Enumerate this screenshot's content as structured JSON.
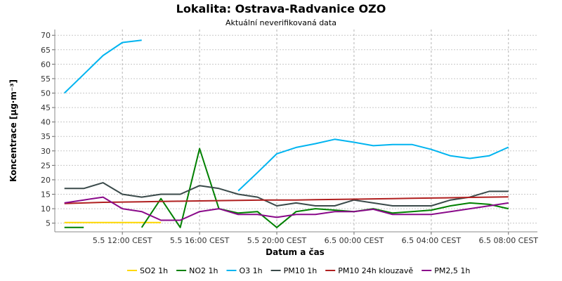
{
  "chart_data": {
    "type": "line",
    "title": "Lokalita: Ostrava-Radvanice OZO",
    "subtitle": "Aktuální neverifikovaná data",
    "xlabel": "Datum a čas",
    "ylabel": "Koncentrace [µg·m⁻³]",
    "ylim": [
      2,
      72
    ],
    "yticks": [
      5,
      10,
      15,
      20,
      25,
      30,
      35,
      40,
      45,
      50,
      55,
      60,
      65,
      70
    ],
    "xlim": [
      8.5,
      33.5
    ],
    "xticks": [
      {
        "x": 12,
        "label": "5.5 12:00 CEST"
      },
      {
        "x": 16,
        "label": "5.5 16:00 CEST"
      },
      {
        "x": 20,
        "label": "5.5 20:00 CEST"
      },
      {
        "x": 24,
        "label": "6.5 00:00 CEST"
      },
      {
        "x": 28,
        "label": "6.5 04:00 CEST"
      },
      {
        "x": 32,
        "label": "6.5 08:00 CEST"
      }
    ],
    "grid": true,
    "legend_position": "bottom",
    "series": [
      {
        "name": "SO2 1h",
        "color": "#ffd800",
        "points": [
          [
            9,
            5.2
          ],
          [
            10,
            5.2
          ],
          [
            11,
            5.2
          ],
          [
            12,
            5.2
          ],
          [
            13,
            5.2
          ],
          [
            14,
            5.2
          ]
        ]
      },
      {
        "name": "NO2 1h",
        "color": "#008000",
        "points": [
          [
            9,
            3.5
          ],
          [
            10,
            3.5
          ],
          null,
          [
            13,
            3.5
          ],
          [
            14,
            13.5
          ],
          [
            15,
            3.5
          ],
          [
            16,
            30.8
          ],
          [
            17,
            10
          ],
          [
            18,
            8.5
          ],
          [
            19,
            9
          ],
          [
            20,
            3.5
          ],
          [
            21,
            9
          ],
          [
            22,
            10
          ],
          [
            23,
            9.5
          ],
          [
            24,
            9
          ],
          [
            25,
            10
          ],
          [
            26,
            8.5
          ],
          [
            27,
            9
          ],
          [
            28,
            9.5
          ],
          [
            29,
            11
          ],
          [
            30,
            12
          ],
          [
            31,
            11.5
          ],
          [
            32,
            10
          ]
        ]
      },
      {
        "name": "O3 1h",
        "color": "#00b4f0",
        "points": [
          [
            9,
            50
          ],
          [
            10,
            56.5
          ],
          [
            11,
            63
          ],
          [
            12,
            67.5
          ],
          [
            13,
            68.3
          ],
          null,
          [
            18,
            16.2
          ],
          [
            19,
            22.5
          ],
          [
            20,
            29
          ],
          [
            21,
            31.2
          ],
          [
            22,
            32.5
          ],
          [
            23,
            34
          ],
          [
            24,
            33
          ],
          [
            25,
            31.8
          ],
          [
            26,
            32.2
          ],
          [
            27,
            32.2
          ],
          [
            28,
            30.5
          ],
          [
            29,
            28.3
          ],
          [
            30,
            27.4
          ],
          [
            31,
            28.3
          ],
          [
            32,
            31.3
          ]
        ]
      },
      {
        "name": "PM10 1h",
        "color": "#3a4a4a",
        "points": [
          [
            9,
            17
          ],
          [
            10,
            17
          ],
          [
            11,
            19
          ],
          [
            12,
            15
          ],
          [
            13,
            14
          ],
          [
            14,
            15
          ],
          [
            15,
            15
          ],
          [
            16,
            18
          ],
          [
            17,
            17
          ],
          [
            18,
            15
          ],
          [
            19,
            14
          ],
          [
            20,
            11
          ],
          [
            21,
            12
          ],
          [
            22,
            11
          ],
          [
            23,
            11
          ],
          [
            24,
            13
          ],
          [
            25,
            12
          ],
          [
            26,
            11
          ],
          [
            27,
            11
          ],
          [
            28,
            11
          ],
          [
            29,
            13
          ],
          [
            30,
            14
          ],
          [
            31,
            16
          ],
          [
            32,
            16
          ]
        ]
      },
      {
        "name": "PM10 24h klouzavě",
        "color": "#b02020",
        "points": [
          [
            9,
            11.8
          ],
          [
            10,
            12
          ],
          [
            11,
            12.2
          ],
          [
            12,
            12.3
          ],
          [
            13,
            12.4
          ],
          [
            14,
            12.5
          ],
          [
            15,
            12.6
          ],
          [
            16,
            12.7
          ],
          [
            17,
            12.8
          ],
          [
            18,
            12.9
          ],
          [
            19,
            12.95
          ],
          [
            20,
            13
          ],
          [
            21,
            13
          ],
          [
            22,
            13.1
          ],
          [
            23,
            13.2
          ],
          [
            24,
            13.3
          ],
          [
            25,
            13.4
          ],
          [
            26,
            13.5
          ],
          [
            27,
            13.6
          ],
          [
            28,
            13.7
          ],
          [
            29,
            13.8
          ],
          [
            30,
            13.9
          ],
          [
            31,
            14
          ],
          [
            32,
            14.1
          ]
        ]
      },
      {
        "name": "PM2,5 1h",
        "color": "#8a0a8a",
        "points": [
          [
            9,
            12
          ],
          [
            10,
            13
          ],
          [
            11,
            14
          ],
          [
            12,
            10
          ],
          [
            13,
            9
          ],
          [
            14,
            6
          ],
          [
            15,
            6
          ],
          [
            16,
            9
          ],
          [
            17,
            10
          ],
          [
            18,
            8
          ],
          [
            19,
            8
          ],
          [
            20,
            7
          ],
          [
            21,
            8
          ],
          [
            22,
            8
          ],
          [
            23,
            9
          ],
          [
            24,
            9
          ],
          [
            25,
            9.8
          ],
          [
            26,
            8
          ],
          [
            27,
            8
          ],
          [
            28,
            8
          ],
          [
            29,
            9
          ],
          [
            30,
            10
          ],
          [
            31,
            11
          ],
          [
            32,
            12
          ]
        ]
      }
    ]
  }
}
